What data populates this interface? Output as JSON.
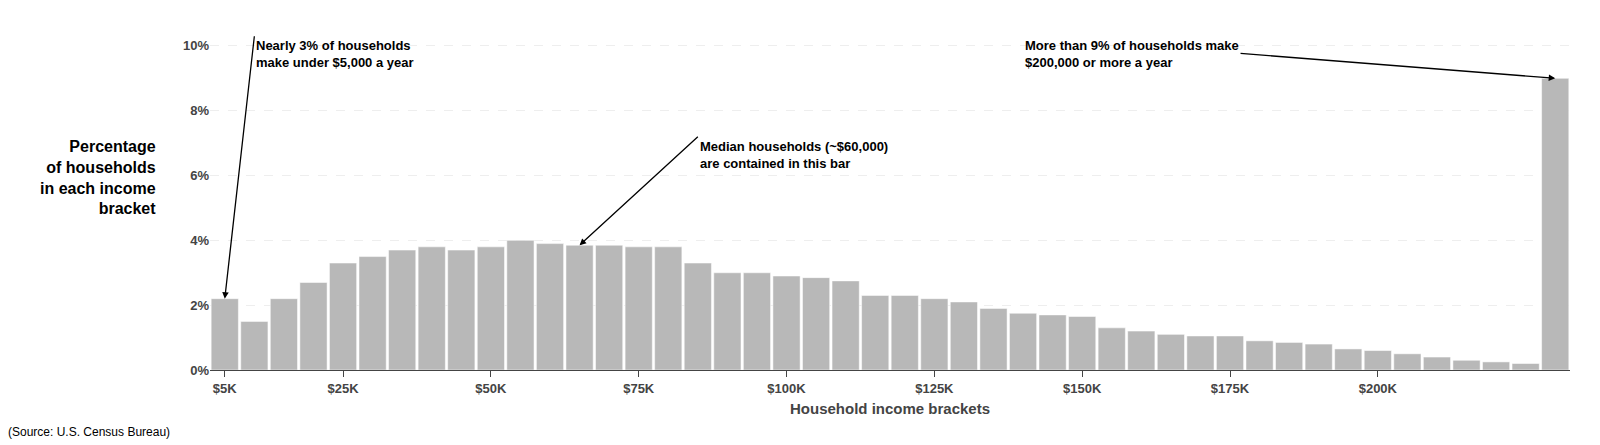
{
  "chart_data": {
    "type": "bar",
    "ylabel": "Percentage\nof households\nin each income\nbracket",
    "xlabel": "Household income brackets",
    "categories": [
      "$5K",
      null,
      null,
      null,
      "$25K",
      null,
      null,
      null,
      null,
      "$50K",
      null,
      null,
      null,
      null,
      "$75K",
      null,
      null,
      null,
      null,
      "$100K",
      null,
      null,
      null,
      null,
      "$125K",
      null,
      null,
      null,
      null,
      "$150K",
      null,
      null,
      null,
      null,
      "$175K",
      null,
      null,
      null,
      null,
      "$200K",
      null,
      null,
      null,
      null,
      null,
      null
    ],
    "values": [
      2.2,
      1.5,
      2.2,
      2.7,
      3.3,
      3.5,
      3.7,
      3.8,
      3.7,
      3.8,
      4.0,
      3.9,
      3.85,
      3.85,
      3.8,
      3.8,
      3.3,
      3.0,
      3.0,
      2.9,
      2.85,
      2.75,
      2.3,
      2.3,
      2.2,
      2.1,
      1.9,
      1.75,
      1.7,
      1.65,
      1.3,
      1.2,
      1.1,
      1.05,
      1.05,
      0.9,
      0.85,
      0.8,
      0.65,
      0.6,
      0.5,
      0.4,
      0.3,
      0.25,
      0.2,
      9.0
    ],
    "color": "#b8b8b8",
    "ylim": [
      0,
      10.8
    ],
    "yticks": [
      {
        "value": 0,
        "label": "0%"
      },
      {
        "value": 2,
        "label": "2%"
      },
      {
        "value": 4,
        "label": "4%"
      },
      {
        "value": 6,
        "label": "6%"
      },
      {
        "value": 8,
        "label": "8%"
      },
      {
        "value": 10,
        "label": "10%"
      }
    ],
    "grid": true,
    "annotations": [
      {
        "text": "Nearly 3% of households\nmake under $5,000 a year",
        "x": 0,
        "y": 2.2
      },
      {
        "text": "More than 9% of households make\n$200,000 or more a year",
        "x": 45,
        "y": 9.0
      },
      {
        "text": "Median households (~$60,000)\nare contained in this bar",
        "x": 12,
        "y": 3.85
      },
      {
        "text": "(Source: U.S. Census Bureau)"
      }
    ]
  }
}
